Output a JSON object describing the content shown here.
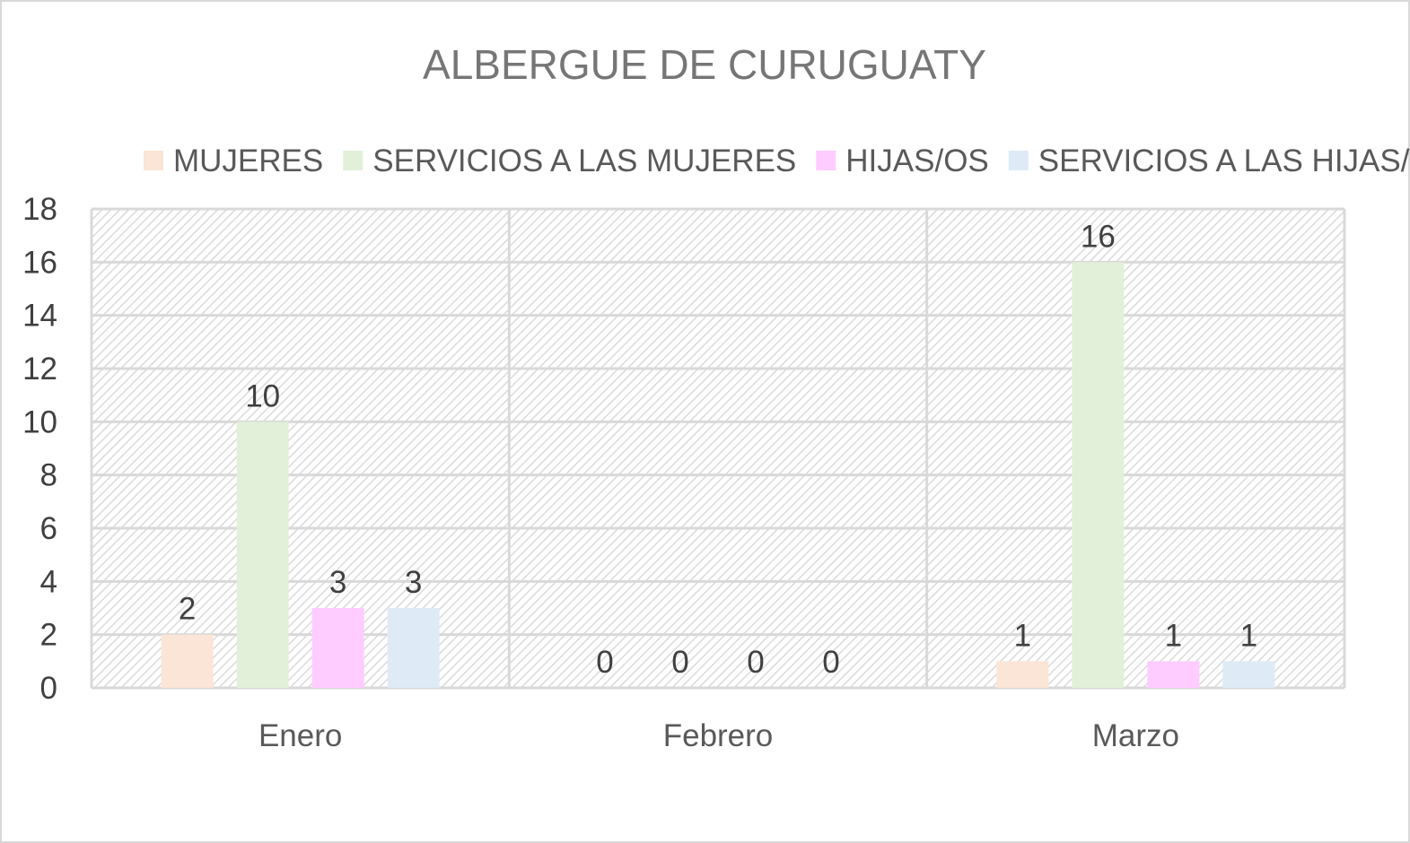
{
  "chart_data": {
    "type": "bar",
    "title": "ALBERGUE DE CURUGUATY",
    "xlabel": "",
    "ylabel": "",
    "categories": [
      "Enero",
      "Febrero",
      "Marzo"
    ],
    "series": [
      {
        "name": "MUJERES",
        "values": [
          2,
          0,
          1
        ],
        "color": "#fbe5d6"
      },
      {
        "name": "SERVICIOS A LAS MUJERES",
        "values": [
          10,
          0,
          16
        ],
        "color": "#e2f0d9"
      },
      {
        "name": "HIJAS/OS",
        "values": [
          3,
          0,
          1
        ],
        "color": "#ffccff"
      },
      {
        "name": "SERVICIOS A LAS HIJAS/OS",
        "values": [
          3,
          0,
          1
        ],
        "color": "#deebf7"
      }
    ],
    "ylim": [
      0,
      18
    ],
    "yticks": [
      0,
      2,
      4,
      6,
      8,
      10,
      12,
      14,
      16,
      18
    ],
    "grid": true,
    "legend_position": "top",
    "data_labels": true,
    "plot_background": "hatched light gray"
  }
}
